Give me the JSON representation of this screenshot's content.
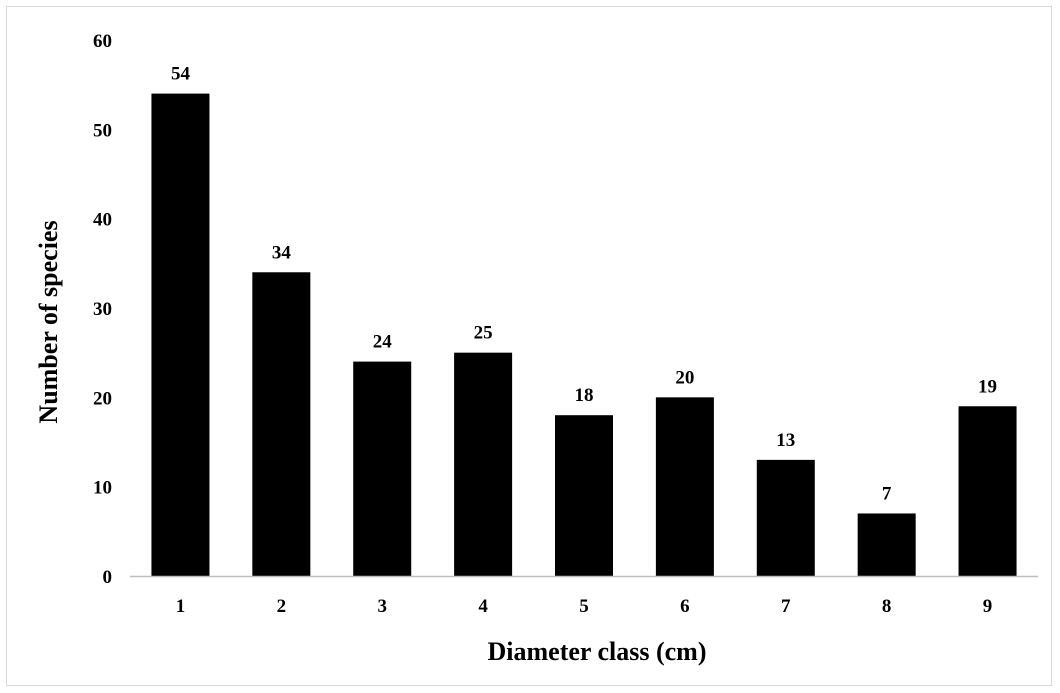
{
  "chart_data": {
    "type": "bar",
    "title": "",
    "xlabel": "Diameter class (cm)",
    "ylabel": "Number of species",
    "categories": [
      "1",
      "2",
      "3",
      "4",
      "5",
      "6",
      "7",
      "8",
      "9"
    ],
    "values": [
      54,
      34,
      24,
      25,
      18,
      20,
      13,
      7,
      19
    ],
    "data_labels": [
      "54",
      "34",
      "24",
      "25",
      "18",
      "20",
      "13",
      "7",
      "19"
    ],
    "ylim": [
      0,
      60
    ],
    "yticks": [
      0,
      10,
      20,
      30,
      40,
      50,
      60
    ],
    "ytick_labels": [
      "0",
      "10",
      "20",
      "30",
      "40",
      "50",
      "60"
    ],
    "grid": false,
    "legend": "none",
    "bar_color": "#000000"
  }
}
